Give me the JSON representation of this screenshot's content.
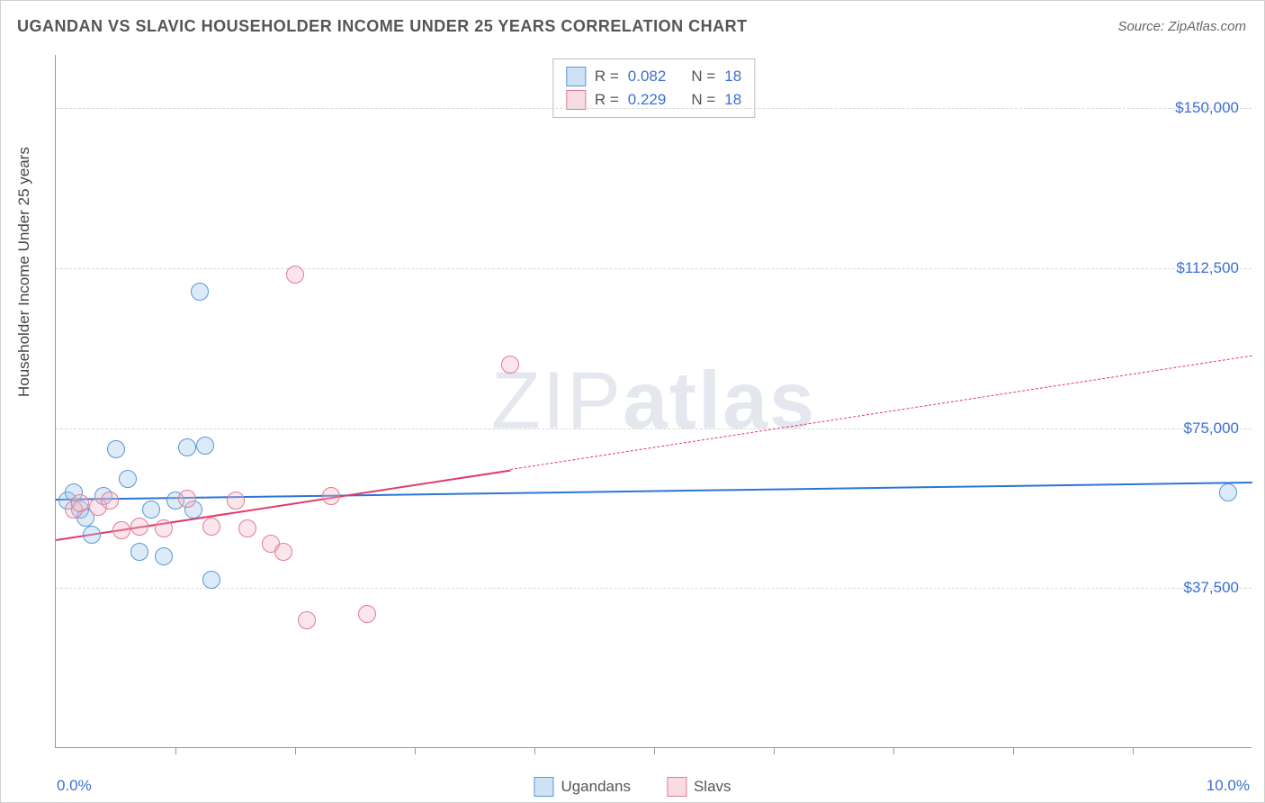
{
  "title": "UGANDAN VS SLAVIC HOUSEHOLDER INCOME UNDER 25 YEARS CORRELATION CHART",
  "source": "Source: ZipAtlas.com",
  "watermark_light": "ZIP",
  "watermark_bold": "atlas",
  "y_axis_title": "Householder Income Under 25 years",
  "chart": {
    "type": "scatter",
    "background_color": "#ffffff",
    "grid_color": "#d8d8d8",
    "border_color": "#999999",
    "xlim": [
      0.0,
      10.0
    ],
    "ylim": [
      0,
      162500
    ],
    "x_min_label": "0.0%",
    "x_max_label": "10.0%",
    "y_ticks": [
      37500,
      75000,
      112500,
      150000
    ],
    "y_tick_labels": [
      "$37,500",
      "$75,000",
      "$112,500",
      "$150,000"
    ],
    "x_tick_positions": [
      1.0,
      2.0,
      3.0,
      4.0,
      5.0,
      6.0,
      7.0,
      8.0,
      9.0
    ],
    "marker_radius": 10,
    "marker_border_width": 1.5,
    "marker_fill_opacity": 0.35,
    "series": [
      {
        "name": "Ugandans",
        "color_fill": "#9fc6ec",
        "color_border": "#5a97d6",
        "R": "0.082",
        "N": "18",
        "trend": {
          "x1": 0.0,
          "y1": 58500,
          "x2": 10.0,
          "y2": 62500,
          "solid_until_x": 10.0,
          "color": "#2d74d6",
          "width": 2.5
        },
        "points": [
          {
            "x": 0.1,
            "y": 58000
          },
          {
            "x": 0.15,
            "y": 60000
          },
          {
            "x": 0.2,
            "y": 56000
          },
          {
            "x": 0.3,
            "y": 50000
          },
          {
            "x": 0.4,
            "y": 59000
          },
          {
            "x": 0.5,
            "y": 70000
          },
          {
            "x": 0.7,
            "y": 46000
          },
          {
            "x": 0.9,
            "y": 45000
          },
          {
            "x": 1.0,
            "y": 58000
          },
          {
            "x": 1.1,
            "y": 70500
          },
          {
            "x": 1.15,
            "y": 56000
          },
          {
            "x": 1.2,
            "y": 107000
          },
          {
            "x": 1.25,
            "y": 71000
          },
          {
            "x": 1.3,
            "y": 39500
          },
          {
            "x": 0.8,
            "y": 56000
          },
          {
            "x": 0.6,
            "y": 63000
          },
          {
            "x": 0.25,
            "y": 54000
          },
          {
            "x": 9.8,
            "y": 60000
          }
        ]
      },
      {
        "name": "Slavs",
        "color_fill": "#f3b7c6",
        "color_border": "#e07b97",
        "R": "0.229",
        "N": "18",
        "trend": {
          "x1": 0.0,
          "y1": 49000,
          "x2": 10.0,
          "y2": 92000,
          "solid_until_x": 3.8,
          "color": "#e33a6a",
          "width": 2.5
        },
        "points": [
          {
            "x": 0.15,
            "y": 56000
          },
          {
            "x": 0.2,
            "y": 57500
          },
          {
            "x": 0.35,
            "y": 56500
          },
          {
            "x": 0.45,
            "y": 58000
          },
          {
            "x": 0.55,
            "y": 51000
          },
          {
            "x": 0.7,
            "y": 52000
          },
          {
            "x": 0.9,
            "y": 51500
          },
          {
            "x": 1.1,
            "y": 58500
          },
          {
            "x": 1.3,
            "y": 52000
          },
          {
            "x": 1.5,
            "y": 58000
          },
          {
            "x": 1.6,
            "y": 51500
          },
          {
            "x": 1.8,
            "y": 48000
          },
          {
            "x": 1.9,
            "y": 46000
          },
          {
            "x": 2.0,
            "y": 111000
          },
          {
            "x": 2.1,
            "y": 30000
          },
          {
            "x": 2.3,
            "y": 59000
          },
          {
            "x": 2.6,
            "y": 31500
          },
          {
            "x": 3.8,
            "y": 90000
          }
        ]
      }
    ]
  },
  "stats_box": {
    "R_label": "R =",
    "N_label": "N ="
  },
  "legend": {
    "label1": "Ugandans",
    "label2": "Slavs"
  }
}
